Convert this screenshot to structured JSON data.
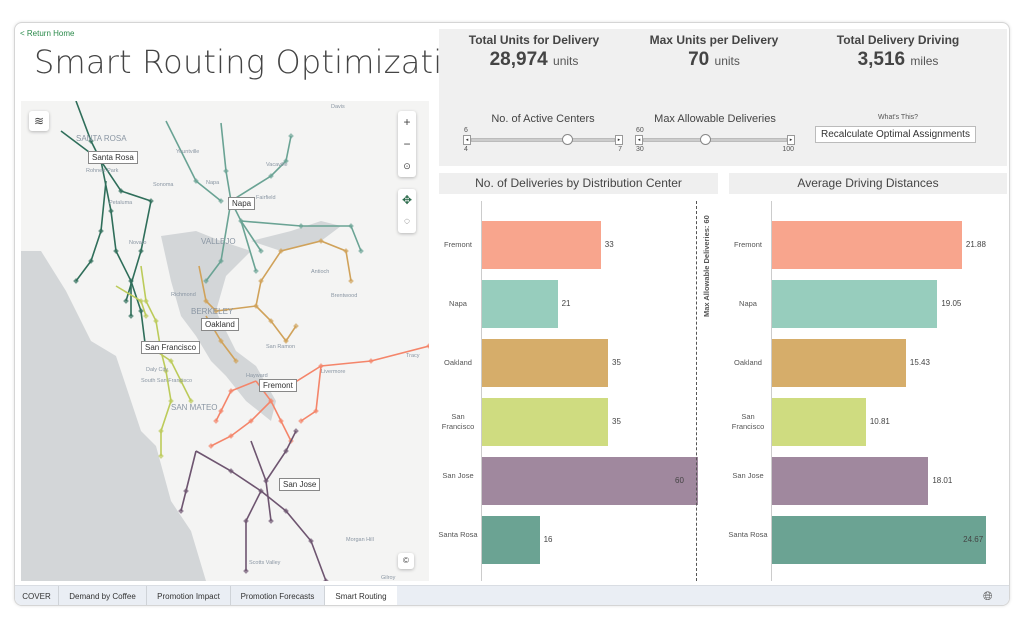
{
  "header": {
    "return_link": "< Return Home",
    "title": "Smart Routing Optimization"
  },
  "kpis": [
    {
      "label": "Total Units for Delivery",
      "value": "28,974",
      "unit": "units"
    },
    {
      "label": "Max Units per Delivery",
      "value": "70",
      "unit": "units"
    },
    {
      "label": "Total Delivery Driving",
      "value": "3,516",
      "unit": "miles"
    }
  ],
  "controls": {
    "active_centers": {
      "label": "No. of Active Centers",
      "value": "6",
      "min": "4",
      "max": "7",
      "fraction": 0.67
    },
    "max_deliveries": {
      "label": "Max Allowable Deliveries",
      "value": "60",
      "min": "30",
      "max": "100",
      "fraction": 0.43
    },
    "whats_this": "What's This?",
    "recalc_label": "Recalculate Optimal Assignments"
  },
  "map": {
    "city_labels": [
      "Santa Rosa",
      "Napa",
      "Oakland",
      "San Francisco",
      "Fremont",
      "San Jose"
    ],
    "base_labels": [
      "SANTA ROSA",
      "Davis",
      "Yountville",
      "Rohnert Park",
      "Sonoma",
      "Napa",
      "Vacaville",
      "Fairfield",
      "Petaluma",
      "Novato",
      "VALLEJO",
      "Antioch",
      "Brentwood",
      "Richmond",
      "BERKELEY",
      "San Ramon",
      "Tracy",
      "Livermore",
      "Daly City",
      "South San Francisco",
      "SAN MATEO",
      "Hayward",
      "Morgan Hill",
      "Scotts Valley",
      "Gilroy"
    ],
    "controls": {
      "zoom_in": "+",
      "zoom_out": "−"
    }
  },
  "charts": {
    "reference_label": "Max Allowable Deliveries: 60"
  },
  "chart_data": [
    {
      "type": "bar",
      "orientation": "horizontal",
      "title": "No. of Deliveries by Distribution Center",
      "categories": [
        "Fremont",
        "Napa",
        "Oakland",
        "San Francisco",
        "San Jose",
        "Santa Rosa"
      ],
      "values": [
        33,
        21,
        35,
        35,
        60,
        16
      ],
      "xlim": [
        0,
        60
      ],
      "reference_line": 60,
      "colors": [
        "#f8a58d",
        "#97cdbd",
        "#d6ad6a",
        "#cfdc80",
        "#a0889e",
        "#6ba393"
      ]
    },
    {
      "type": "bar",
      "orientation": "horizontal",
      "title": "Average Driving Distances",
      "categories": [
        "Fremont",
        "Napa",
        "Oakland",
        "San Francisco",
        "San Jose",
        "Santa Rosa"
      ],
      "values": [
        21.88,
        19.05,
        15.43,
        10.81,
        18.01,
        24.67
      ],
      "xlim": [
        0,
        25
      ],
      "colors": [
        "#f8a58d",
        "#97cdbd",
        "#d6ad6a",
        "#cfdc80",
        "#a0889e",
        "#6ba393"
      ]
    }
  ],
  "tabs": [
    {
      "label": "COVER"
    },
    {
      "label": "Demand by Coffee"
    },
    {
      "label": "Promotion Impact"
    },
    {
      "label": "Promotion Forecasts"
    },
    {
      "label": "Smart Routing",
      "active": true
    }
  ]
}
